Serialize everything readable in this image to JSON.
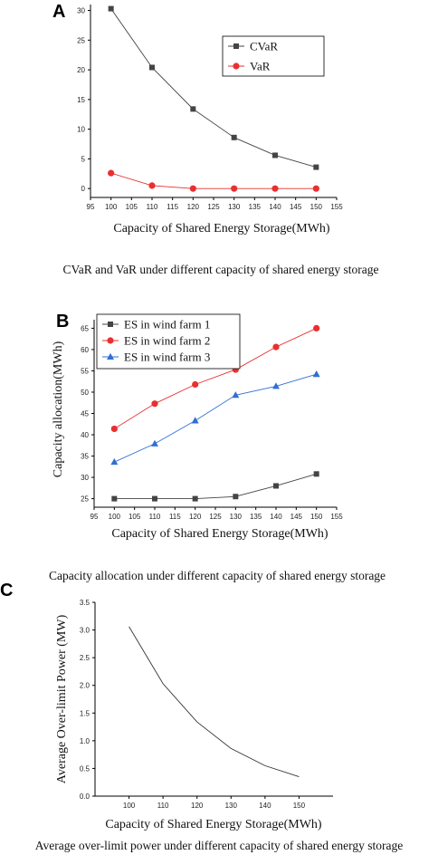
{
  "chart_data": [
    {
      "panel": "A",
      "type": "line",
      "x": [
        100,
        110,
        120,
        130,
        140,
        150
      ],
      "series": [
        {
          "name": "CVaR",
          "values": [
            30.3,
            20.4,
            13.4,
            8.6,
            5.6,
            3.6
          ],
          "color": "#444444",
          "marker": "square"
        },
        {
          "name": "VaR",
          "values": [
            2.6,
            0.5,
            0.0,
            0.0,
            0.0,
            0.0
          ],
          "color": "#e8302f",
          "marker": "circle"
        }
      ],
      "xlabel": "Capacity of Shared Energy Storage(MWh)",
      "ylabel": "",
      "xlim": [
        95,
        155
      ],
      "ylim": [
        -1.5,
        31
      ],
      "xticks": [
        95,
        100,
        105,
        110,
        115,
        120,
        125,
        130,
        135,
        140,
        145,
        150,
        155
      ],
      "yticks": [
        0,
        5,
        10,
        15,
        20,
        25,
        30
      ],
      "legend": "top-right",
      "caption": "CVaR and VaR under different capacity of shared energy storage"
    },
    {
      "panel": "B",
      "type": "line",
      "x": [
        100,
        110,
        120,
        130,
        140,
        150
      ],
      "series": [
        {
          "name": "ES in wind farm 1",
          "values": [
            25.0,
            25.0,
            25.0,
            25.5,
            28.0,
            30.8
          ],
          "color": "#444444",
          "marker": "square"
        },
        {
          "name": "ES in wind farm 2",
          "values": [
            41.4,
            47.3,
            51.8,
            55.3,
            60.6,
            65.0
          ],
          "color": "#e8302f",
          "marker": "circle"
        },
        {
          "name": "ES in wind farm 3",
          "values": [
            33.6,
            37.9,
            43.3,
            49.3,
            51.4,
            54.2
          ],
          "color": "#2f6fd6",
          "marker": "triangle"
        }
      ],
      "xlabel": "Capacity of Shared Energy Storage(MWh)",
      "ylabel": "Capacity allocation(MWh)",
      "xlim": [
        95,
        155
      ],
      "ylim": [
        23,
        67
      ],
      "xticks": [
        95,
        100,
        105,
        110,
        115,
        120,
        125,
        130,
        135,
        140,
        145,
        150,
        155
      ],
      "yticks": [
        25,
        30,
        35,
        40,
        45,
        50,
        55,
        60,
        65
      ],
      "legend": "top-left",
      "caption": "Capacity allocation under different capacity of shared energy storage"
    },
    {
      "panel": "C",
      "type": "line",
      "x": [
        100,
        110,
        120,
        130,
        140,
        150
      ],
      "series": [
        {
          "values": [
            3.06,
            2.03,
            1.34,
            0.86,
            0.55,
            0.35
          ],
          "color": "#333333",
          "marker": "none"
        }
      ],
      "xlabel": "Capacity of Shared Energy Storage(MWh)",
      "ylabel": "Average Over-limit Power (MW)",
      "xlim": [
        90,
        160
      ],
      "ylim": [
        0,
        3.5
      ],
      "xticks": [
        100,
        110,
        120,
        130,
        140,
        150
      ],
      "yticks": [
        0.0,
        0.5,
        1.0,
        1.5,
        2.0,
        2.5,
        3.0,
        3.5
      ],
      "legend": "none",
      "caption": "Average over-limit power under different capacity of shared energy storage"
    }
  ]
}
